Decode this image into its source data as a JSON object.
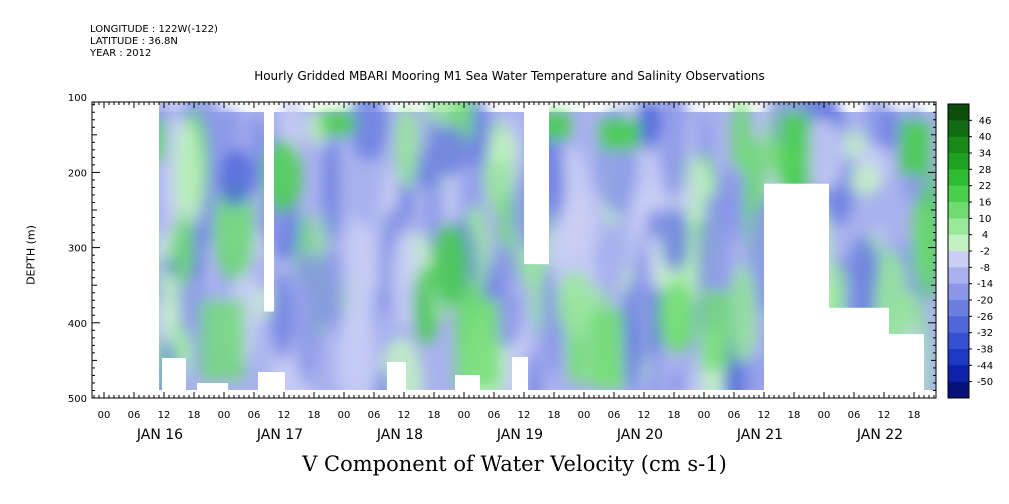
{
  "header": {
    "longitude": "LONGITUDE : 122W(-122)",
    "latitude": "LATITUDE : 36.8N",
    "year": "YEAR : 2012"
  },
  "title": "Hourly Gridded MBARI Mooring M1 Sea Water Temperature and Salinity Observations",
  "chart_data": {
    "type": "heatmap",
    "title": "Hourly Gridded MBARI Mooring M1 Sea Water Temperature and Salinity Observations",
    "variable_label": "V Component of Water Velocity (cm s-1)",
    "ylabel": "DEPTH (m)",
    "y_reversed": true,
    "ylim": [
      0,
      500
    ],
    "y_ticks": [
      100,
      200,
      300,
      400,
      500
    ],
    "x_hour_ticks": [
      "00",
      "06",
      "12",
      "18",
      "00",
      "06",
      "12",
      "18",
      "00",
      "06",
      "12",
      "18",
      "00",
      "06",
      "12",
      "18",
      "00",
      "06",
      "12",
      "18",
      "00",
      "06",
      "12",
      "18",
      "00",
      "06",
      "12",
      "18"
    ],
    "x_day_labels": [
      "JAN 16",
      "JAN 17",
      "JAN 18",
      "JAN 19",
      "JAN 20",
      "JAN 21",
      "JAN 22"
    ],
    "colorbar": {
      "labels": [
        "46",
        "40",
        "34",
        "28",
        "22",
        "16",
        "10",
        "4",
        "-2",
        "-8",
        "-14",
        "-20",
        "-26",
        "-32",
        "-38",
        "-44",
        "-50"
      ],
      "colors": [
        "#0b4d0b",
        "#116b12",
        "#178a19",
        "#1ea221",
        "#2bbd2f",
        "#49cf4c",
        "#6fdc72",
        "#98e89a",
        "#c2f1c3",
        "#c9cff5",
        "#a9b2ee",
        "#8a97e8",
        "#6c7fe1",
        "#4f67da",
        "#3550d2",
        "#1d38c4",
        "#0d22a8",
        "#06127a"
      ]
    },
    "gaps": [
      {
        "name": "gap-before-start",
        "x_hours": [
          0,
          11
        ],
        "depth": [
          0,
          500
        ]
      },
      {
        "name": "gap-jan17-early",
        "x_hours": [
          32,
          34
        ],
        "depth": [
          0,
          385
        ]
      },
      {
        "name": "gap-jan19-early",
        "x_hours": [
          84,
          89
        ],
        "depth": [
          0,
          322
        ]
      },
      {
        "name": "gap-jan21",
        "x_hours": [
          132,
          145
        ],
        "depth": [
          215,
          500
        ]
      },
      {
        "name": "gap-jan21-late",
        "x_hours": [
          145,
          157
        ],
        "depth": [
          380,
          500
        ]
      },
      {
        "name": "gap-jan22-early",
        "x_hours": [
          157,
          164
        ],
        "depth": [
          415,
          500
        ]
      }
    ],
    "value_range": [
      -50,
      46
    ],
    "dominant_range": [
      -26,
      16
    ]
  }
}
